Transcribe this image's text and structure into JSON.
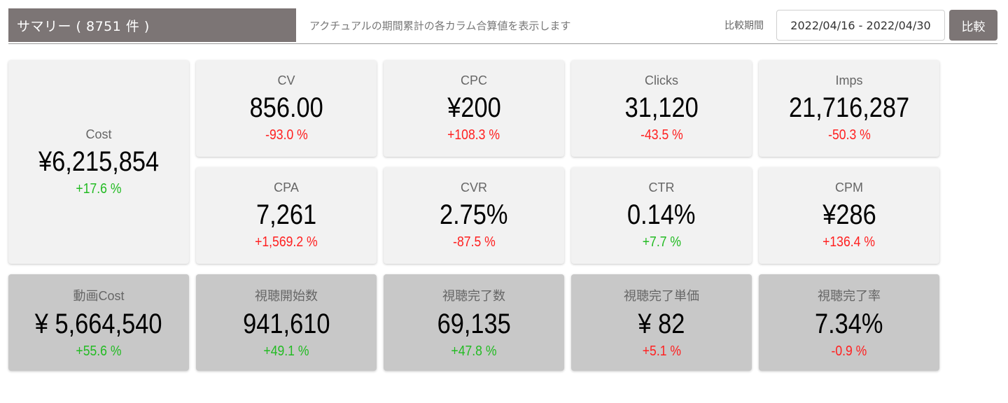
{
  "header": {
    "title": "サマリー ( 8751 件 )",
    "description": "アクチュアルの期間累計の各カラム合算値を表示します",
    "compare_label": "比較期間",
    "date_range": "2022/04/16 - 2022/04/30",
    "compare_button": "比較"
  },
  "colors": {
    "positive": "#22bb22",
    "negative": "#ff2020",
    "header_bg": "#7c7575",
    "card_bg": "#f2f2f2",
    "card_bg_video": "#c8c8c8"
  },
  "metrics": {
    "cost": {
      "label": "Cost",
      "value": "¥6,215,854",
      "delta": "+17.6 %",
      "trend": "positive"
    },
    "cv": {
      "label": "CV",
      "value": "856.00",
      "delta": "-93.0 %",
      "trend": "negative"
    },
    "cpc": {
      "label": "CPC",
      "value": "¥200",
      "delta": "+108.3 %",
      "trend": "negative"
    },
    "clicks": {
      "label": "Clicks",
      "value": "31,120",
      "delta": "-43.5 %",
      "trend": "negative"
    },
    "imps": {
      "label": "Imps",
      "value": "21,716,287",
      "delta": "-50.3 %",
      "trend": "negative"
    },
    "cpa": {
      "label": "CPA",
      "value": "7,261",
      "delta": "+1,569.2 %",
      "trend": "negative"
    },
    "cvr": {
      "label": "CVR",
      "value": "2.75%",
      "delta": "-87.5 %",
      "trend": "negative"
    },
    "ctr": {
      "label": "CTR",
      "value": "0.14%",
      "delta": "+7.7 %",
      "trend": "positive"
    },
    "cpm": {
      "label": "CPM",
      "value": "¥286",
      "delta": "+136.4 %",
      "trend": "negative"
    },
    "video_cost": {
      "label": "動画Cost",
      "value": "¥ 5,664,540",
      "delta": "+55.6 %",
      "trend": "positive"
    },
    "view_starts": {
      "label": "視聴開始数",
      "value": "941,610",
      "delta": "+49.1 %",
      "trend": "positive"
    },
    "view_completes": {
      "label": "視聴完了数",
      "value": "69,135",
      "delta": "+47.8 %",
      "trend": "positive"
    },
    "complete_unit_price": {
      "label": "視聴完了単価",
      "value": "¥ 82",
      "delta": "+5.1 %",
      "trend": "negative"
    },
    "complete_rate": {
      "label": "視聴完了率",
      "value": "7.34%",
      "delta": "-0.9 %",
      "trend": "negative"
    }
  }
}
